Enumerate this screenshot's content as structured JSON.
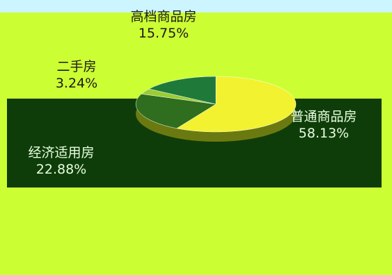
{
  "chart_data": {
    "type": "pie",
    "categories": [
      "普通商品房",
      "经济适用房",
      "二手房",
      "高档商品房"
    ],
    "values": [
      58.13,
      22.88,
      3.24,
      15.75
    ],
    "value_labels": [
      "58.13%",
      "22.88%",
      "3.24%",
      "15.75%"
    ],
    "colors": [
      "#f2f230",
      "#2e6e1e",
      "#9acd32",
      "#1f7a3a"
    ]
  }
}
